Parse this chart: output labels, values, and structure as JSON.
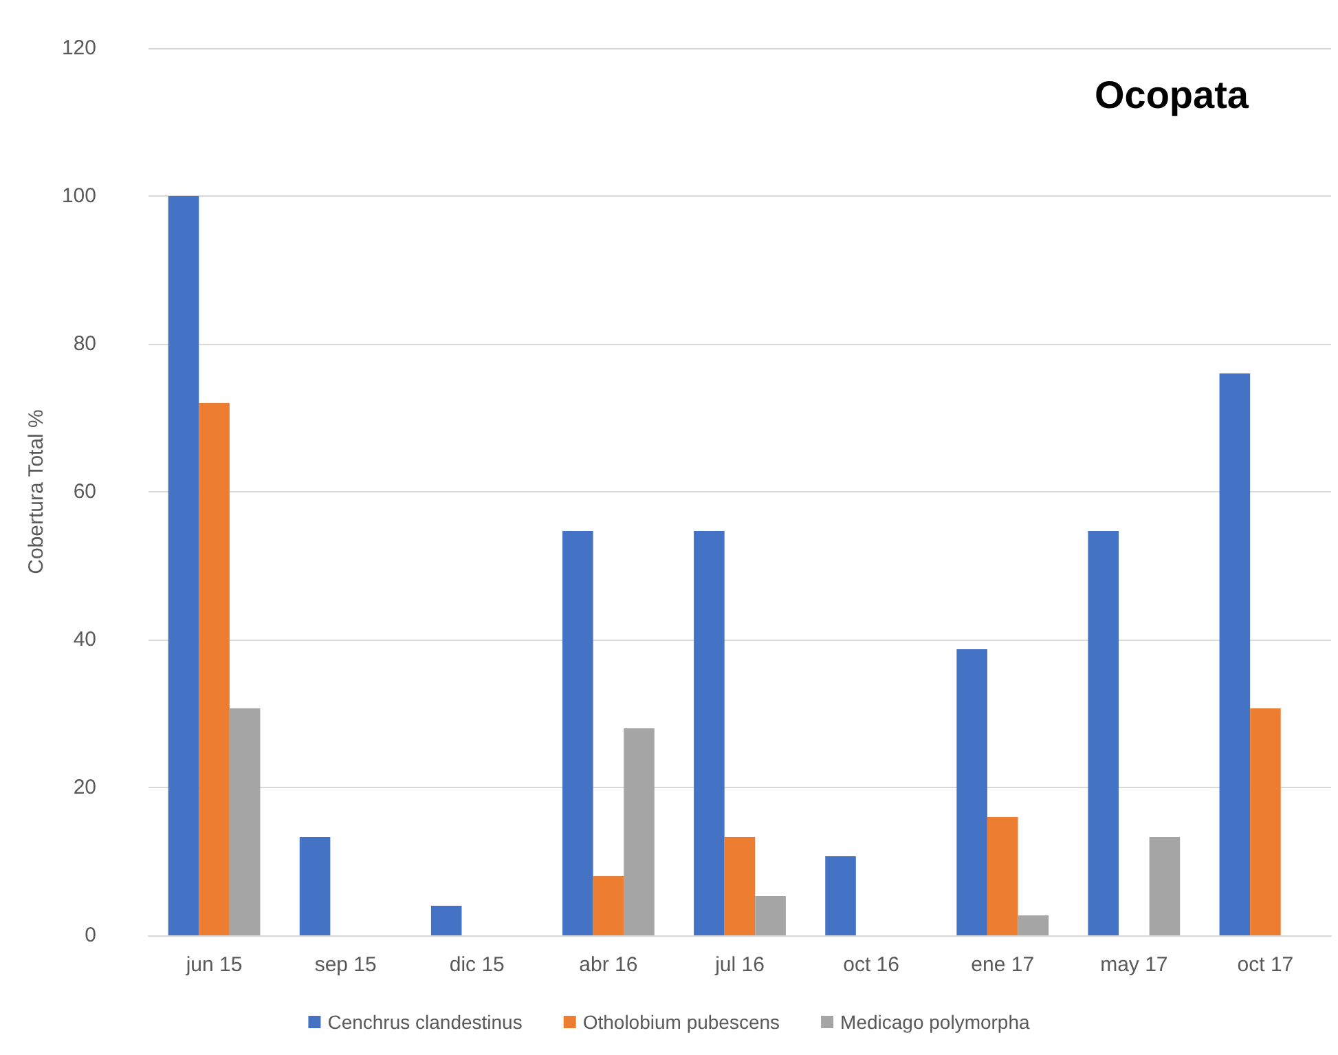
{
  "chart_data": {
    "type": "bar",
    "title": "Ocopata",
    "ylabel": "Cobertura Total %",
    "categories": [
      "jun 15",
      "sep 15",
      "dic 15",
      "abr 16",
      "jul 16",
      "oct 16",
      "ene 17",
      "may 17",
      "oct 17"
    ],
    "series": [
      {
        "name": "Cenchrus clandestinus",
        "color": "#4472c4",
        "values": [
          100,
          13.3,
          4,
          54.7,
          54.7,
          10.7,
          38.7,
          54.7,
          76
        ]
      },
      {
        "name": "Otholobium pubescens",
        "color": "#ed7d31",
        "values": [
          72,
          0,
          0,
          8,
          13.3,
          0,
          16,
          0,
          30.7
        ]
      },
      {
        "name": "Medicago polymorpha",
        "color": "#a5a5a5",
        "values": [
          30.7,
          0,
          0,
          28,
          5.3,
          0,
          2.7,
          13.3,
          0
        ]
      }
    ],
    "ylim": [
      0,
      120
    ],
    "yticks": [
      0,
      20,
      40,
      60,
      80,
      100,
      120
    ],
    "grid": "y",
    "legend": "bottom"
  }
}
